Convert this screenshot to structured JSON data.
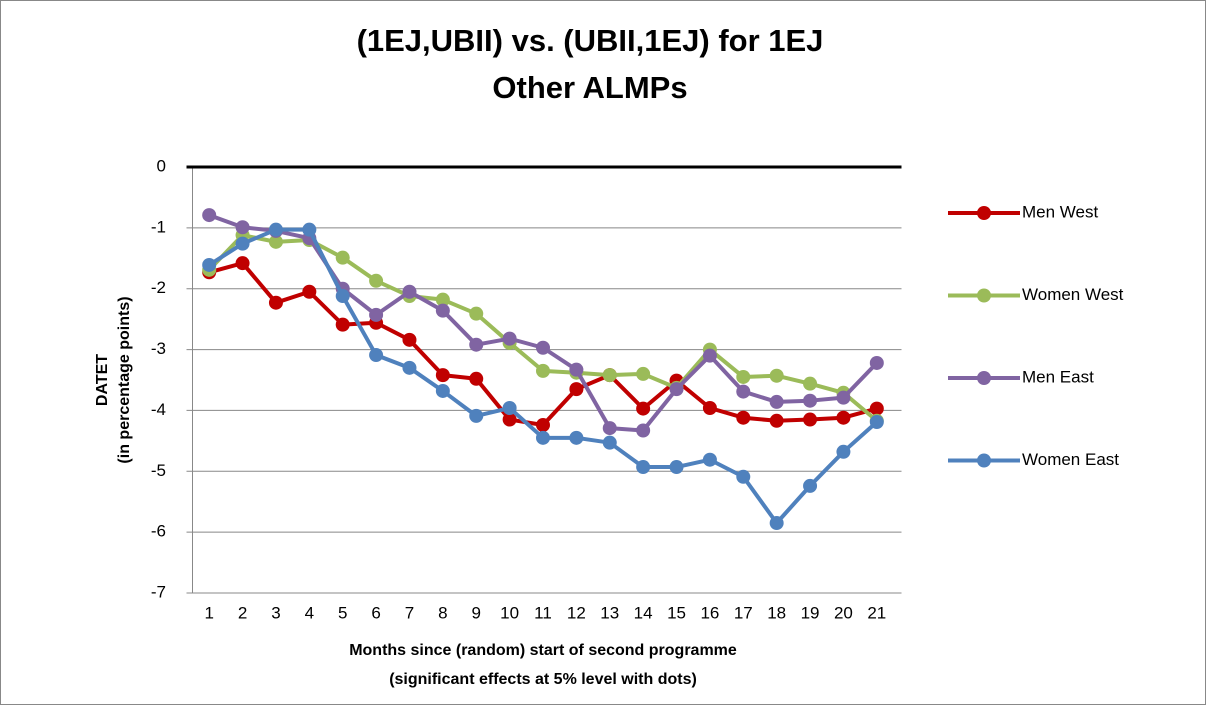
{
  "chart_data": {
    "type": "line",
    "title": [
      "(1EJ,UBII) vs. (UBII,1EJ) for 1EJ",
      "Other ALMPs"
    ],
    "y_label": [
      "DATET",
      "(in percentage points)"
    ],
    "x_label": [
      "Months since (random) start of second programme",
      "(significant  effects at 5% level with dots)"
    ],
    "categories": [
      1,
      2,
      3,
      4,
      5,
      6,
      7,
      8,
      9,
      10,
      11,
      12,
      13,
      14,
      15,
      16,
      17,
      18,
      19,
      20,
      21
    ],
    "series": [
      {
        "name": "Men West",
        "color": "#c00000",
        "values": [
          -1.73,
          -1.58,
          -2.23,
          -2.05,
          -2.59,
          -2.56,
          -2.84,
          -3.42,
          -3.48,
          -4.15,
          -4.24,
          -3.65,
          -3.42,
          -3.97,
          -3.51,
          -3.96,
          -4.12,
          -4.17,
          -4.15,
          -4.12,
          -3.97
        ]
      },
      {
        "name": "Women West",
        "color": "#9bbb59",
        "values": [
          -1.69,
          -1.12,
          -1.23,
          -1.2,
          -1.49,
          -1.87,
          -2.12,
          -2.18,
          -2.41,
          -2.89,
          -3.35,
          -3.38,
          -3.42,
          -3.4,
          -3.63,
          -3.0,
          -3.45,
          -3.43,
          -3.56,
          -3.71,
          -4.17
        ]
      },
      {
        "name": "Men East",
        "color": "#8064a2",
        "values": [
          -0.79,
          -0.99,
          -1.05,
          -1.17,
          -2.0,
          -2.43,
          -2.05,
          -2.36,
          -2.92,
          -2.82,
          -2.97,
          -3.33,
          -4.29,
          -4.33,
          -3.65,
          -3.1,
          -3.69,
          -3.86,
          -3.84,
          -3.79,
          -3.22
        ]
      },
      {
        "name": "Women East",
        "color": "#4f81bd",
        "values": [
          -1.61,
          -1.26,
          -1.03,
          -1.03,
          -2.12,
          -3.09,
          -3.3,
          -3.68,
          -4.09,
          -3.96,
          -4.45,
          -4.45,
          -4.53,
          -4.93,
          -4.93,
          -4.81,
          -5.09,
          -5.85,
          -5.24,
          -4.68,
          -4.19
        ]
      }
    ],
    "ylim": [
      -7,
      0
    ],
    "yticks": [
      0,
      -1,
      -2,
      -3,
      -4,
      -5,
      -6,
      -7
    ],
    "grid": true,
    "legend": "right"
  }
}
